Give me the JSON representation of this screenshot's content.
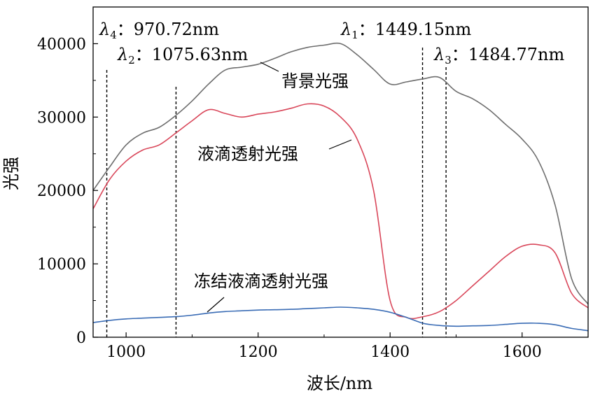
{
  "chart_data": {
    "type": "line",
    "xlabel": "波长/nm",
    "ylabel": "光强",
    "xlim": [
      950,
      1700
    ],
    "ylim": [
      0,
      45000
    ],
    "xticks": [
      1000,
      1200,
      1400,
      1600
    ],
    "yticks": [
      0,
      10000,
      20000,
      30000,
      40000
    ],
    "x": [
      950,
      975,
      1000,
      1025,
      1050,
      1075,
      1100,
      1125,
      1150,
      1175,
      1200,
      1225,
      1250,
      1275,
      1300,
      1325,
      1350,
      1375,
      1400,
      1425,
      1450,
      1475,
      1500,
      1525,
      1550,
      1575,
      1600,
      1625,
      1650,
      1675,
      1700
    ],
    "series": [
      {
        "name": "背景光强",
        "color": "#6e6e6e",
        "values": [
          20000,
          23200,
          26200,
          27800,
          28600,
          30200,
          32200,
          34500,
          36400,
          36800,
          37200,
          38000,
          38900,
          39500,
          39800,
          40000,
          38500,
          36500,
          34500,
          34800,
          35200,
          35400,
          33500,
          32500,
          31000,
          29000,
          27000,
          24000,
          18000,
          8000,
          4500
        ]
      },
      {
        "name": "液滴透射光强",
        "color": "#d9475a",
        "values": [
          17500,
          21500,
          24000,
          25500,
          26200,
          27800,
          29500,
          31000,
          30500,
          30000,
          30400,
          30700,
          31200,
          31800,
          31500,
          30000,
          27000,
          20000,
          5000,
          2700,
          2800,
          3500,
          5000,
          7000,
          9000,
          11000,
          12400,
          12600,
          11500,
          6000,
          4000
        ]
      },
      {
        "name": "冻结液滴透射光强",
        "color": "#3a6cb5",
        "values": [
          2000,
          2300,
          2500,
          2600,
          2700,
          2800,
          3000,
          3300,
          3500,
          3600,
          3700,
          3750,
          3800,
          3900,
          4000,
          4100,
          4000,
          3800,
          3400,
          2700,
          1900,
          1600,
          1500,
          1550,
          1600,
          1750,
          1900,
          1900,
          1700,
          1200,
          900
        ]
      }
    ],
    "vlines": [
      {
        "label": "λ4",
        "text": "970.72nm",
        "x": 970.72
      },
      {
        "label": "λ2",
        "text": "1075.63nm",
        "x": 1075.63
      },
      {
        "label": "λ1",
        "text": "1449.15nm",
        "x": 1449.15
      },
      {
        "label": "λ3",
        "text": "1484.77nm",
        "x": 1484.77
      }
    ],
    "annotations": [
      {
        "text": "背景光强",
        "series": 0
      },
      {
        "text": "液滴透射光强",
        "series": 1
      },
      {
        "text": "冻结液滴透射光强",
        "series": 2
      }
    ]
  }
}
